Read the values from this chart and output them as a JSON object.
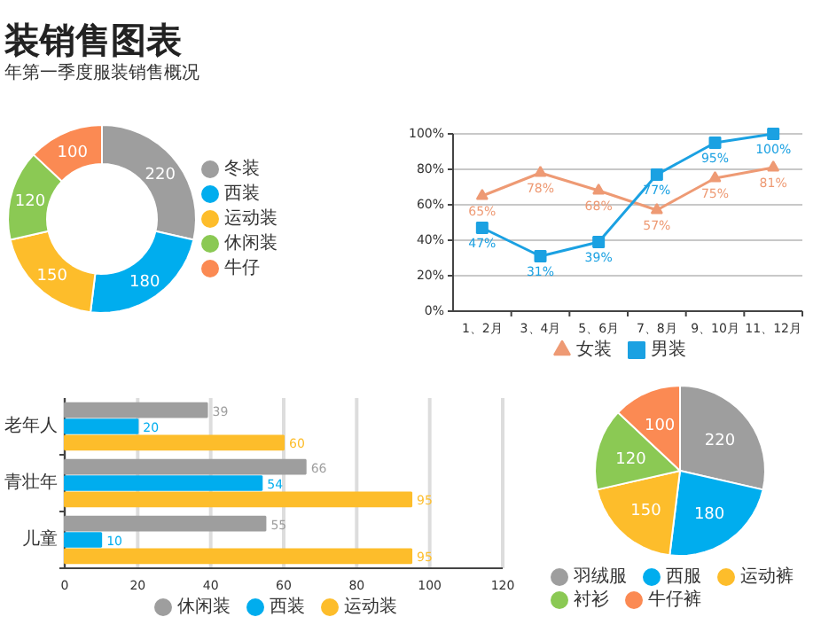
{
  "chart_data": [
    {
      "type": "donut",
      "title": "装销售图表",
      "subtitle": "年第一季度服装销售概况",
      "categories": [
        "冬装",
        "西装",
        "运动装",
        "休闲装",
        "牛仔"
      ],
      "values": [
        220,
        180,
        150,
        120,
        100
      ],
      "colors": [
        "#9e9e9e",
        "#00adee",
        "#fdbd2b",
        "#8bc954",
        "#fb8a53"
      ],
      "data_labels": true,
      "legend": "right"
    },
    {
      "type": "line",
      "categories": [
        "1、2月",
        "3、4月",
        "5、6月",
        "7、8月",
        "9、10月",
        "11、12月"
      ],
      "ylim": [
        0,
        100
      ],
      "yticks": [
        {
          "value": 0,
          "label": "0%"
        },
        {
          "value": 20,
          "label": "20%"
        },
        {
          "value": 40,
          "label": "40%"
        },
        {
          "value": 60,
          "label": "60%"
        },
        {
          "value": 80,
          "label": "80%"
        },
        {
          "value": 100,
          "label": "100%"
        }
      ],
      "grid": "y",
      "legend": "bottom",
      "series": [
        {
          "name": "女装",
          "color": "#ee9a74",
          "marker": "triangle",
          "values": [
            65,
            78,
            68,
            57,
            75,
            81
          ],
          "value_labels": [
            "65%",
            "78%",
            "68%",
            "57%",
            "75%",
            "81%"
          ]
        },
        {
          "name": "男装",
          "color": "#1ba1e2",
          "marker": "square",
          "values": [
            47,
            31,
            39,
            77,
            95,
            100
          ],
          "value_labels": [
            "47%",
            "31%",
            "39%",
            "77%",
            "95%",
            "100%"
          ]
        }
      ]
    },
    {
      "type": "bar",
      "orientation": "horizontal",
      "categories": [
        "老年人",
        "青壮年",
        "儿童"
      ],
      "xlim": [
        0,
        120
      ],
      "xticks": [
        0,
        20,
        40,
        60,
        80,
        100,
        120
      ],
      "grid": "x",
      "legend": "bottom",
      "data_labels": true,
      "series": [
        {
          "name": "休闲装",
          "color": "#9e9e9e",
          "values": [
            39,
            66,
            55
          ]
        },
        {
          "name": "西装",
          "color": "#00adee",
          "values": [
            20,
            54,
            10
          ]
        },
        {
          "name": "运动装",
          "color": "#fdbd2b",
          "values": [
            60,
            95,
            95
          ]
        }
      ]
    },
    {
      "type": "pie",
      "categories": [
        "羽绒服",
        "西服",
        "运动裤",
        "衬衫",
        "牛仔裤"
      ],
      "values": [
        220,
        180,
        150,
        120,
        100
      ],
      "colors": [
        "#9e9e9e",
        "#00adee",
        "#fdbd2b",
        "#8bc954",
        "#fb8a53"
      ],
      "data_labels": true,
      "legend": "bottom"
    }
  ]
}
